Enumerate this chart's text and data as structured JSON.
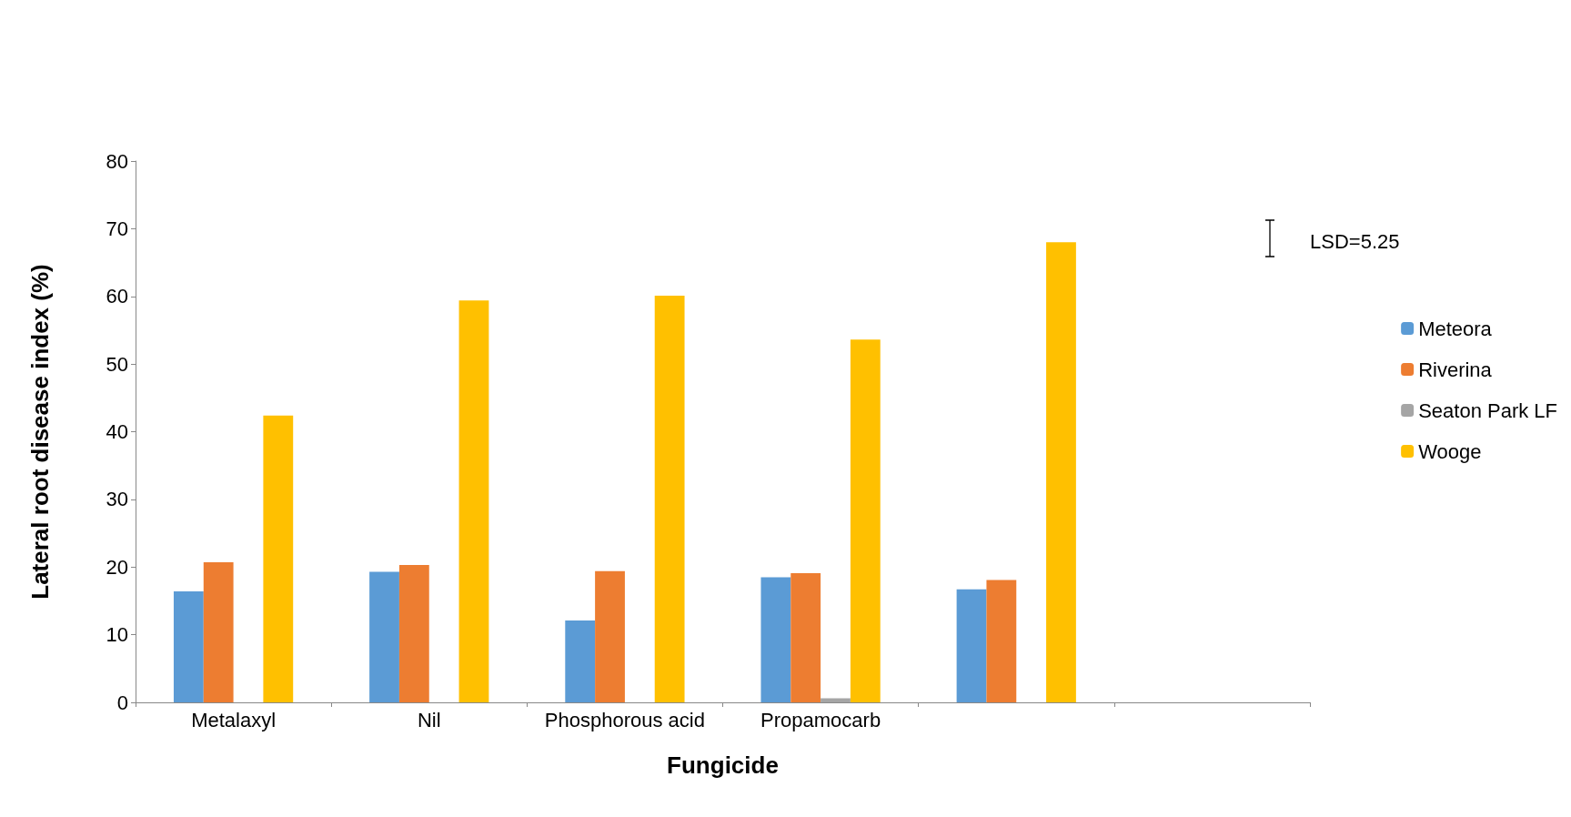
{
  "chart_data": {
    "type": "bar",
    "xlabel": "Fungicide",
    "ylabel": "Lateral root disease index (%)",
    "categories": [
      "Metalaxyl",
      "Nil",
      "Phosphorous acid",
      "Propamocarb",
      null,
      null
    ],
    "series": [
      {
        "name": "Meteora",
        "color": "#5b9bd5",
        "values": [
          16.4,
          19.3,
          12.1,
          18.5,
          16.7,
          null
        ]
      },
      {
        "name": "Riverina",
        "color": "#ed7d31",
        "values": [
          20.7,
          20.3,
          19.4,
          19.1,
          18.1,
          null
        ]
      },
      {
        "name": "Seaton Park LF",
        "color": "#a5a5a5",
        "values": [
          null,
          null,
          null,
          0.6,
          null,
          null
        ]
      },
      {
        "name": "Wooge",
        "color": "#ffc000",
        "values": [
          42.4,
          59.4,
          60.1,
          53.6,
          68.0,
          null
        ]
      }
    ],
    "ylim": [
      0,
      80
    ],
    "yticks": [
      0,
      10,
      20,
      30,
      40,
      50,
      60,
      70,
      80
    ],
    "grid": false,
    "legend": "right",
    "annotations": [
      "LSD=5.25"
    ]
  }
}
